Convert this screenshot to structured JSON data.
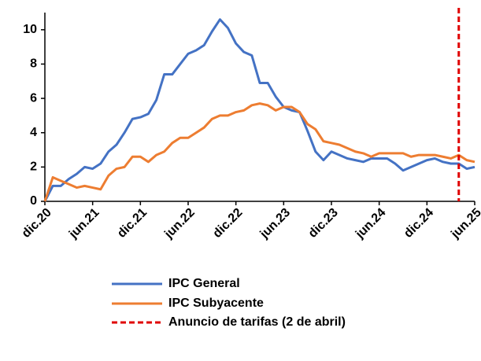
{
  "chart_data": {
    "type": "line",
    "categories": [
      "dic.20",
      null,
      null,
      null,
      null,
      null,
      "jun.21",
      null,
      null,
      null,
      null,
      null,
      "dic.21",
      null,
      null,
      null,
      null,
      null,
      "jun.22",
      null,
      null,
      null,
      null,
      null,
      "dic.22",
      null,
      null,
      null,
      null,
      null,
      "jun.23",
      null,
      null,
      null,
      null,
      null,
      "dic.23",
      null,
      null,
      null,
      null,
      null,
      "jun.24",
      null,
      null,
      null,
      null,
      null,
      "dic.24",
      null,
      null,
      null,
      null,
      null,
      "jun.25"
    ],
    "series": [
      {
        "name": "IPC General",
        "color": "#4472c4",
        "values": [
          0,
          0.9,
          0.9,
          1.3,
          1.6,
          2.0,
          1.9,
          2.2,
          2.9,
          3.3,
          4.0,
          4.8,
          4.9,
          5.1,
          5.9,
          7.4,
          7.4,
          8.0,
          8.6,
          8.8,
          9.1,
          9.9,
          10.6,
          10.1,
          9.2,
          8.7,
          8.5,
          6.9,
          6.9,
          6.1,
          5.5,
          5.3,
          5.2,
          4.1,
          2.9,
          2.4,
          2.9,
          2.7,
          2.5,
          2.4,
          2.3,
          2.5,
          2.5,
          2.5,
          2.2,
          1.8,
          2.0,
          2.2,
          2.4,
          2.5,
          2.3,
          2.2,
          2.2,
          1.9,
          2.0
        ]
      },
      {
        "name": "IPC Subyacente",
        "color": "#ed7d31",
        "values": [
          0,
          1.4,
          1.2,
          1.0,
          0.8,
          0.9,
          0.8,
          0.7,
          1.5,
          1.9,
          2.0,
          2.6,
          2.6,
          2.3,
          2.7,
          2.9,
          3.4,
          3.7,
          3.7,
          4.0,
          4.3,
          4.8,
          5.0,
          5.0,
          5.2,
          5.3,
          5.6,
          5.7,
          5.6,
          5.3,
          5.5,
          5.5,
          5.2,
          4.5,
          4.2,
          3.5,
          3.4,
          3.3,
          3.1,
          2.9,
          2.8,
          2.6,
          2.8,
          2.8,
          2.8,
          2.8,
          2.6,
          2.7,
          2.7,
          2.7,
          2.6,
          2.5,
          2.7,
          2.4,
          2.3
        ]
      },
      {
        "name": "Anuncio de tarifas (2 de abril)",
        "color": "#e00000",
        "type": "vline",
        "x": 52
      }
    ],
    "ylim": [
      0,
      11
    ],
    "yticks": [
      0,
      2,
      4,
      6,
      8,
      10
    ],
    "grid": false
  }
}
